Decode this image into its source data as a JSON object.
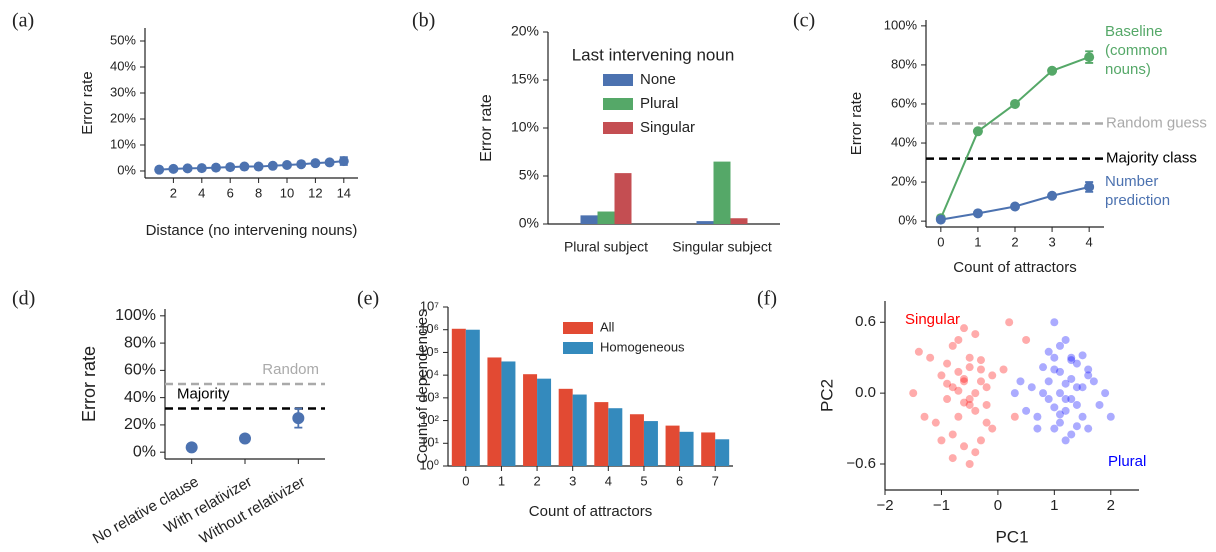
{
  "chart_data": [
    {
      "type": "line",
      "label": "(a)",
      "xlabel": "Distance (no intervening nouns)",
      "ylabel": "Error rate",
      "color": "#4c72b0",
      "x": [
        1,
        2,
        3,
        4,
        5,
        6,
        7,
        8,
        9,
        10,
        11,
        12,
        13,
        14
      ],
      "values": [
        0.5,
        0.8,
        1,
        1.1,
        1.3,
        1.5,
        1.7,
        1.7,
        2,
        2.3,
        2.6,
        3,
        3.3,
        3.8
      ],
      "errors": [
        null,
        null,
        null,
        null,
        null,
        null,
        null,
        null,
        null,
        null,
        null,
        0.6,
        0.8,
        1.5
      ],
      "xlim": [
        0,
        15
      ],
      "ylim": [
        -2.7,
        55
      ],
      "xticks": [
        2,
        4,
        6,
        8,
        10,
        12,
        14
      ],
      "yticks": [
        {
          "value": 0,
          "label": "0%"
        },
        {
          "value": 10,
          "label": "10%"
        },
        {
          "value": 20,
          "label": "20%"
        },
        {
          "value": 30,
          "label": "30%"
        },
        {
          "value": 40,
          "label": "40%"
        },
        {
          "value": 50,
          "label": "50%"
        }
      ]
    },
    {
      "type": "bar",
      "label": "(b)",
      "ylabel": "Error rate",
      "legend_title": "Last intervening noun",
      "categories": [
        "Plural subject",
        "Singular subject"
      ],
      "series": [
        {
          "name": "None",
          "color": "#4c72b0",
          "values": [
            0.9,
            0.3
          ]
        },
        {
          "name": "Plural",
          "color": "#55a868",
          "values": [
            1.3,
            6.5
          ]
        },
        {
          "name": "Singular",
          "color": "#c44e52",
          "values": [
            5.3,
            0.6
          ]
        }
      ],
      "ylim": [
        0,
        20
      ],
      "yticks": [
        {
          "value": 0,
          "label": "0%"
        },
        {
          "value": 5,
          "label": "5%"
        },
        {
          "value": 10,
          "label": "10%"
        },
        {
          "value": 15,
          "label": "15%"
        },
        {
          "value": 20,
          "label": "20%"
        }
      ]
    },
    {
      "type": "line",
      "label": "(c)",
      "xlabel": "Count of attractors",
      "ylabel": "Error rate",
      "x": [
        0,
        1,
        2,
        3,
        4
      ],
      "series": [
        {
          "name": "Baseline (common nouns)",
          "color": "#55a868",
          "values": [
            1.5,
            46,
            60,
            77,
            84
          ],
          "errors": [
            null,
            null,
            null,
            null,
            3
          ]
        },
        {
          "name": "Number prediction",
          "color": "#4c72b0",
          "values": [
            0.8,
            4,
            7.5,
            13,
            17.5
          ],
          "errors": [
            null,
            null,
            null,
            null,
            2.5
          ]
        }
      ],
      "hlines": [
        {
          "value": 50,
          "label": "Random guess",
          "color": "#aaaaaa"
        },
        {
          "value": 32,
          "label": "Majority class",
          "color": "#000000"
        }
      ],
      "xlim": [
        -0.4,
        4.4
      ],
      "ylim": [
        -3,
        103
      ],
      "xticks": [
        0,
        1,
        2,
        3,
        4
      ],
      "yticks": [
        {
          "value": 0,
          "label": "0%"
        },
        {
          "value": 20,
          "label": "20%"
        },
        {
          "value": 40,
          "label": "40%"
        },
        {
          "value": 60,
          "label": "60%"
        },
        {
          "value": 80,
          "label": "80%"
        },
        {
          "value": 100,
          "label": "100%"
        }
      ]
    },
    {
      "type": "dot",
      "label": "(d)",
      "ylabel": "Error rate",
      "color": "#4c72b0",
      "categories": [
        "No relative clause",
        "With relativizer",
        "Without relativizer"
      ],
      "values": [
        3.5,
        10,
        25
      ],
      "errors": [
        null,
        null,
        7
      ],
      "hlines": [
        {
          "value": 50,
          "label": "Random",
          "color": "#aaaaaa"
        },
        {
          "value": 32,
          "label": "Majority",
          "color": "#000000"
        }
      ],
      "ylim": [
        -5,
        105
      ],
      "yticks": [
        {
          "value": 0,
          "label": "0%"
        },
        {
          "value": 20,
          "label": "20%"
        },
        {
          "value": 40,
          "label": "40%"
        },
        {
          "value": 60,
          "label": "60%"
        },
        {
          "value": 80,
          "label": "80%"
        },
        {
          "value": 100,
          "label": "100%"
        }
      ]
    },
    {
      "type": "bar",
      "label": "(e)",
      "xlabel": "Count of attractors",
      "ylabel": "Count of dependencies",
      "log_y": true,
      "categories": [
        "0",
        "1",
        "2",
        "3",
        "4",
        "5",
        "6",
        "7"
      ],
      "series": [
        {
          "name": "All",
          "color": "#e24a33",
          "values": [
            1100000,
            60000,
            11000,
            2500,
            650,
            190,
            60,
            30
          ]
        },
        {
          "name": "Homogeneous",
          "color": "#348abd",
          "values": [
            1000000,
            40000,
            7000,
            1400,
            350,
            95,
            32,
            15
          ]
        }
      ],
      "ylim": [
        1,
        10000000
      ],
      "yticks": [
        {
          "value": 1,
          "label": "10⁰"
        },
        {
          "value": 10,
          "label": "10¹"
        },
        {
          "value": 100,
          "label": "10²"
        },
        {
          "value": 1000,
          "label": "10³"
        },
        {
          "value": 10000,
          "label": "10⁴"
        },
        {
          "value": 100000,
          "label": "10⁵"
        },
        {
          "value": 1000000,
          "label": "10⁶"
        },
        {
          "value": 10000000,
          "label": "10⁷"
        }
      ]
    },
    {
      "type": "scatter",
      "label": "(f)",
      "xlabel": "PC1",
      "ylabel": "PC2",
      "series": [
        {
          "name": "Singular",
          "color": "#ff0000",
          "x": [
            -0.6,
            -0.4,
            -0.8,
            -0.5,
            -0.3,
            -1.0,
            -0.7,
            -0.2,
            -0.9,
            -0.5,
            -0.6,
            -0.4,
            -1.2,
            -0.1,
            -0.7,
            -0.3,
            -0.8,
            -0.5,
            0.1,
            -1.4,
            -0.6,
            -0.9,
            -0.2,
            -0.4,
            -1.1,
            -0.7,
            0.3,
            -0.5,
            -0.8,
            -0.3,
            -1.0,
            -0.6,
            -0.1,
            -0.4,
            -1.3,
            0.5,
            -0.7,
            -0.2,
            -0.9,
            -0.5,
            -0.3,
            0.2,
            -1.5,
            -0.6,
            -0.8
          ],
          "values": [
            0.1,
            0.0,
            0.05,
            -0.1,
            0.2,
            0.15,
            -0.2,
            0.05,
            -0.05,
            0.3,
            0.12,
            -0.15,
            0.3,
            -0.3,
            0.45,
            0.1,
            -0.35,
            -0.05,
            0.2,
            0.35,
            -0.45,
            0.25,
            -0.1,
            0.5,
            -0.25,
            0.02,
            -0.2,
            -0.6,
            0.4,
            0.28,
            -0.4,
            0.55,
            0.15,
            -0.5,
            -0.2,
            0.45,
            0.18,
            -0.25,
            0.08,
            0.22,
            -0.4,
            0.6,
            0.0,
            -0.08,
            -0.55
          ]
        },
        {
          "name": "Plural",
          "color": "#0000ff",
          "x": [
            1.1,
            1.3,
            0.9,
            1.5,
            1.2,
            1.0,
            1.4,
            0.8,
            1.6,
            1.1,
            1.3,
            0.7,
            1.2,
            1.8,
            1.0,
            1.4,
            0.9,
            1.5,
            1.1,
            1.7,
            0.6,
            1.3,
            1.2,
            1.0,
            1.9,
            0.5,
            1.4,
            1.1,
            1.6,
            0.8,
            1.2,
            1.3,
            0.4,
            1.5,
            1.0,
            2.0,
            1.2,
            0.9,
            1.4,
            0.7,
            1.1,
            0.3,
            1.3,
            1.6,
            1.0
          ],
          "values": [
            0.0,
            -0.05,
            0.1,
            0.05,
            -0.15,
            0.2,
            -0.1,
            0.0,
            0.15,
            -0.25,
            0.3,
            -0.2,
            0.08,
            -0.1,
            -0.3,
            0.25,
            0.35,
            -0.2,
            0.4,
            0.1,
            0.05,
            -0.35,
            -0.05,
            0.3,
            0.0,
            -0.15,
            -0.28,
            0.18,
            -0.3,
            0.22,
            -0.4,
            0.12,
            0.1,
            0.32,
            -0.12,
            -0.2,
            0.45,
            -0.05,
            0.05,
            -0.3,
            -0.18,
            0.0,
            0.28,
            0.2,
            0.6
          ]
        }
      ],
      "xlim": [
        -2,
        2.5
      ],
      "ylim": [
        -0.82,
        0.78
      ],
      "xticks": [
        {
          "value": -2,
          "label": "−2"
        },
        {
          "value": -1,
          "label": "−1"
        },
        0,
        1,
        2
      ],
      "yticks": [
        0.6,
        {
          "value": 0,
          "label": "0.0"
        },
        {
          "value": -0.6,
          "label": "−0.6"
        }
      ]
    }
  ]
}
